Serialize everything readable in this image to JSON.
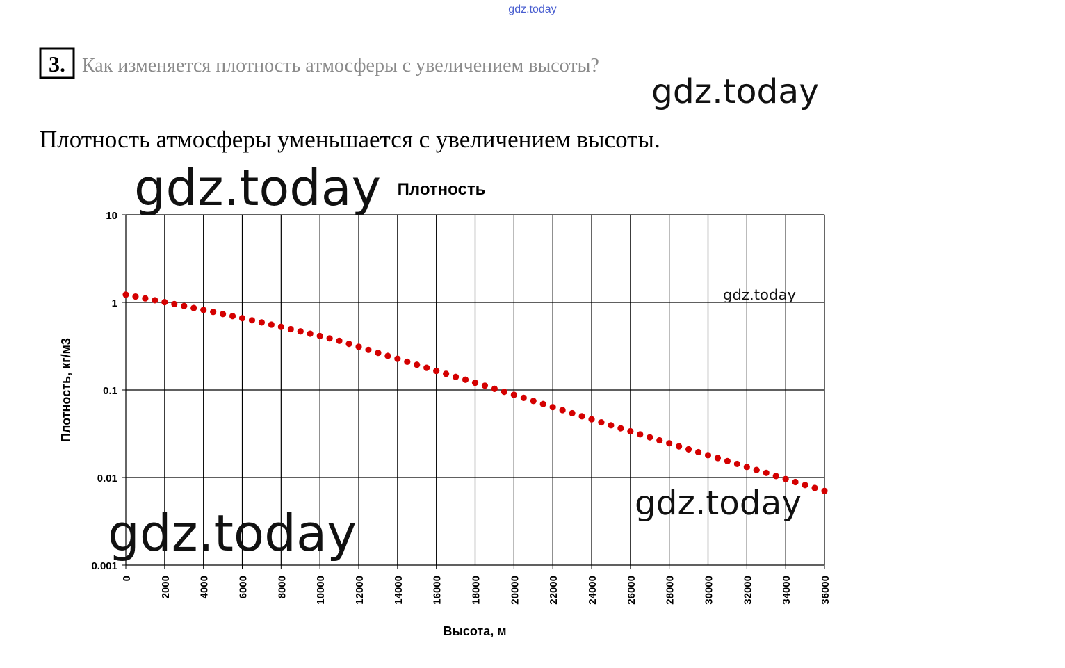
{
  "header": {
    "watermark": "gdz.today"
  },
  "question": {
    "number": "3.",
    "text": "Как изменяется плотность атмосферы с увеличением высоты?"
  },
  "answer": "Плотность атмосферы уменьшается с увеличением высоты.",
  "watermarks": [
    "gdz.today",
    "gdz.today",
    "gdz.today",
    "gdz.today",
    "gdz.today"
  ],
  "chart_data": {
    "type": "scatter",
    "title": "Плотность",
    "xlabel": "Высота, м",
    "ylabel": "Плотность, кг/м3",
    "ylog": true,
    "grid": true,
    "color": "#d40000",
    "xlim": [
      0,
      36000
    ],
    "xticks": [
      0,
      2000,
      4000,
      6000,
      8000,
      10000,
      12000,
      14000,
      16000,
      18000,
      20000,
      22000,
      24000,
      26000,
      28000,
      30000,
      32000,
      34000,
      36000
    ],
    "ylim": [
      0.001,
      10
    ],
    "yticks": [
      0.001,
      0.01,
      0.1,
      1,
      10
    ],
    "x": [
      0,
      500,
      1000,
      1500,
      2000,
      2500,
      3000,
      3500,
      4000,
      4500,
      5000,
      5500,
      6000,
      6500,
      7000,
      7500,
      8000,
      8500,
      9000,
      9500,
      10000,
      10500,
      11000,
      11500,
      12000,
      12500,
      13000,
      13500,
      14000,
      14500,
      15000,
      15500,
      16000,
      16500,
      17000,
      17500,
      18000,
      18500,
      19000,
      19500,
      20000,
      20500,
      21000,
      21500,
      22000,
      22500,
      23000,
      23500,
      24000,
      24500,
      25000,
      25500,
      26000,
      26500,
      27000,
      27500,
      28000,
      28500,
      29000,
      29500,
      30000,
      30500,
      31000,
      31500,
      32000,
      32500,
      33000,
      33500,
      34000,
      34500,
      35000,
      35500,
      36000
    ],
    "values": [
      1.225,
      1.167,
      1.112,
      1.058,
      1.007,
      0.957,
      0.909,
      0.863,
      0.819,
      0.777,
      0.736,
      0.697,
      0.66,
      0.624,
      0.59,
      0.557,
      0.525,
      0.495,
      0.466,
      0.439,
      0.413,
      0.388,
      0.364,
      0.336,
      0.311,
      0.287,
      0.265,
      0.245,
      0.227,
      0.21,
      0.194,
      0.179,
      0.165,
      0.153,
      0.141,
      0.131,
      0.121,
      0.112,
      0.103,
      0.0953,
      0.088,
      0.0812,
      0.0749,
      0.0691,
      0.0637,
      0.0588,
      0.0543,
      0.0501,
      0.0463,
      0.0427,
      0.0395,
      0.0365,
      0.0337,
      0.0311,
      0.0288,
      0.0266,
      0.0246,
      0.0227,
      0.021,
      0.0195,
      0.018,
      0.0167,
      0.0154,
      0.0143,
      0.0132,
      0.0122,
      0.0113,
      0.0104,
      0.00961,
      0.00888,
      0.00821,
      0.0076,
      0.00703
    ]
  }
}
